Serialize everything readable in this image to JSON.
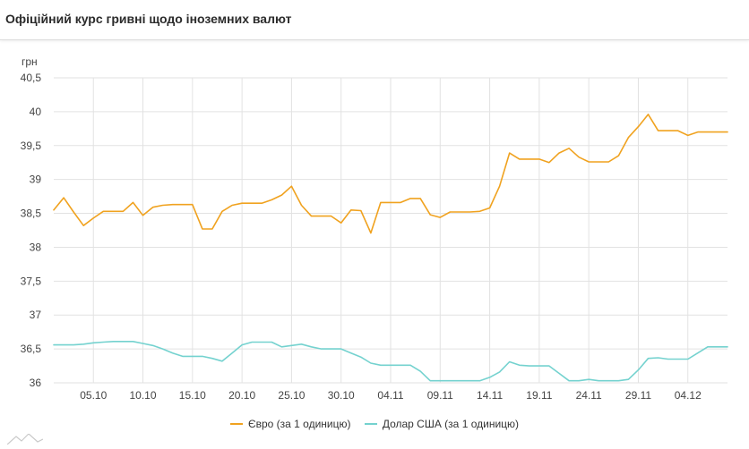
{
  "header": {
    "title": "Офіційний курс гривні щодо іноземних валют"
  },
  "colors": {
    "euro": "#f0a21f",
    "usd": "#74d2cf",
    "grid": "#e2e2e2",
    "axis_text": "#444444"
  },
  "chart_data": {
    "type": "line",
    "title": "Офіційний курс гривні щодо іноземних валют",
    "ylabel": "грн",
    "xlabel": "",
    "ylim": [
      36,
      40.5
    ],
    "yticks": [
      "40,5",
      "40",
      "39,5",
      "39",
      "38,5",
      "38",
      "37,5",
      "37",
      "36,5",
      "36"
    ],
    "ytick_values": [
      40.5,
      40,
      39.5,
      39,
      38.5,
      38,
      37.5,
      37,
      36.5,
      36
    ],
    "xticks": [
      "05.10",
      "10.10",
      "15.10",
      "20.10",
      "25.10",
      "30.10",
      "04.11",
      "09.11",
      "14.11",
      "19.11",
      "24.11",
      "29.11",
      "04.12"
    ],
    "xtick_days": [
      4,
      9,
      14,
      19,
      24,
      29,
      34,
      39,
      44,
      49,
      54,
      59,
      64
    ],
    "xlim": [
      0,
      68
    ],
    "grid": true,
    "legend": "bottom",
    "series": [
      {
        "name": "Євро (за 1 одиницю)",
        "x": [
          0,
          1,
          2,
          3,
          4,
          5,
          6,
          7,
          8,
          9,
          10,
          11,
          12,
          13,
          14,
          15,
          16,
          17,
          18,
          19,
          20,
          21,
          22,
          23,
          24,
          25,
          26,
          27,
          28,
          29,
          30,
          31,
          32,
          33,
          34,
          35,
          36,
          37,
          38,
          39,
          40,
          41,
          42,
          43,
          44,
          45,
          46,
          47,
          48,
          49,
          50,
          51,
          52,
          53,
          54,
          55,
          56,
          57,
          58,
          59,
          60,
          61,
          62,
          63,
          64,
          65,
          66,
          67,
          68
        ],
        "values": [
          38.55,
          38.73,
          38.52,
          38.32,
          38.43,
          38.53,
          38.53,
          38.53,
          38.66,
          38.47,
          38.59,
          38.62,
          38.63,
          38.63,
          38.63,
          38.27,
          38.27,
          38.53,
          38.62,
          38.65,
          38.65,
          38.65,
          38.7,
          38.77,
          38.9,
          38.62,
          38.46,
          38.46,
          38.46,
          38.36,
          38.55,
          38.54,
          38.21,
          38.66,
          38.66,
          38.66,
          38.72,
          38.72,
          38.48,
          38.44,
          38.52,
          38.52,
          38.52,
          38.53,
          38.58,
          38.9,
          39.39,
          39.3,
          39.3,
          39.3,
          39.25,
          39.39,
          39.46,
          39.33,
          39.26,
          39.26,
          39.26,
          39.35,
          39.62,
          39.78,
          39.96,
          39.72,
          39.72,
          39.72,
          39.65,
          39.7,
          39.7,
          39.7,
          39.7
        ]
      },
      {
        "name": "Долар США (за 1 одиницю)",
        "x": [
          0,
          1,
          2,
          3,
          4,
          5,
          6,
          7,
          8,
          9,
          10,
          11,
          12,
          13,
          14,
          15,
          16,
          17,
          18,
          19,
          20,
          21,
          22,
          23,
          24,
          25,
          26,
          27,
          28,
          29,
          30,
          31,
          32,
          33,
          34,
          35,
          36,
          37,
          38,
          39,
          40,
          41,
          42,
          43,
          44,
          45,
          46,
          47,
          48,
          49,
          50,
          51,
          52,
          53,
          54,
          55,
          56,
          57,
          58,
          59,
          60,
          61,
          62,
          63,
          64,
          65,
          66,
          67,
          68
        ],
        "values": [
          36.56,
          36.56,
          36.56,
          36.57,
          36.59,
          36.6,
          36.61,
          36.61,
          36.61,
          36.58,
          36.55,
          36.5,
          36.44,
          36.39,
          36.39,
          36.39,
          36.36,
          36.32,
          36.44,
          36.56,
          36.6,
          36.6,
          36.6,
          36.53,
          36.55,
          36.57,
          36.53,
          36.5,
          36.5,
          36.5,
          36.44,
          36.38,
          36.29,
          36.26,
          36.26,
          36.26,
          36.26,
          36.17,
          36.03,
          36.03,
          36.03,
          36.03,
          36.03,
          36.03,
          36.08,
          36.16,
          36.31,
          36.26,
          36.25,
          36.25,
          36.25,
          36.14,
          36.03,
          36.03,
          36.05,
          36.03,
          36.03,
          36.03,
          36.05,
          36.19,
          36.36,
          36.37,
          36.35,
          36.35,
          36.35,
          36.44,
          36.53,
          36.53,
          36.53
        ]
      }
    ]
  },
  "legend": {
    "items": [
      {
        "label": "Євро (за 1 одиницю)"
      },
      {
        "label": "Долар США (за 1 одиницю)"
      }
    ]
  },
  "logo": {
    "icon": "mountain-logo-icon"
  }
}
